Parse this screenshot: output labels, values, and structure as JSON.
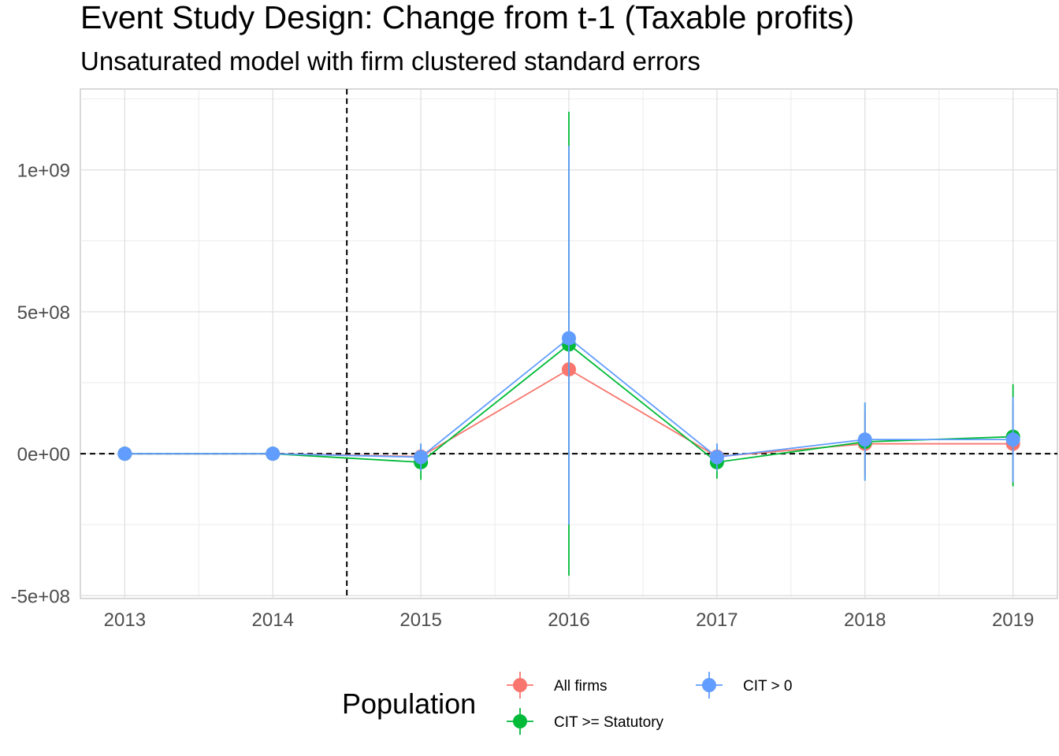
{
  "chart_data": {
    "type": "line",
    "title": "Event Study Design: Change from t-1 (Taxable profits)",
    "subtitle": "Unsaturated model with firm clustered standard errors",
    "xlabel": "",
    "ylabel": "",
    "x": [
      2013,
      2014,
      2015,
      2016,
      2017,
      2018,
      2019
    ],
    "x_tick_labels": [
      "2013",
      "2014",
      "2015",
      "2016",
      "2017",
      "2018",
      "2019"
    ],
    "xlim": [
      2012.7,
      2019.3
    ],
    "ylim": [
      -510000000,
      1285000000
    ],
    "y_ticks": [
      -500000000,
      0,
      500000000,
      1000000000
    ],
    "y_tick_labels": [
      "-5e+08",
      "0e+00",
      "5e+08",
      "1e+09"
    ],
    "reference_lines": [
      {
        "axis": "x",
        "value": 2014.5,
        "style": "dashed"
      },
      {
        "axis": "y",
        "value": 0,
        "style": "dashed"
      }
    ],
    "grid": true,
    "legend_title": "Population",
    "legend_position": "bottom",
    "series": [
      {
        "name": "All firms",
        "color": "#F8766D",
        "values": [
          0,
          0,
          -10000000,
          297000000,
          -10000000,
          35000000,
          35000000
        ],
        "lower": [
          0,
          0,
          -45000000,
          -230000000,
          -45000000,
          -80000000,
          -110000000
        ],
        "upper": [
          0,
          0,
          25000000,
          1020000000,
          25000000,
          150000000,
          180000000
        ]
      },
      {
        "name": "CIT >= Statutory",
        "color": "#00BA38",
        "values": [
          0,
          0,
          -30000000,
          385000000,
          -30000000,
          42000000,
          60000000
        ],
        "lower": [
          0,
          0,
          -92000000,
          -430000000,
          -88000000,
          -95000000,
          -115000000
        ],
        "upper": [
          0,
          0,
          35000000,
          1205000000,
          35000000,
          180000000,
          245000000
        ]
      },
      {
        "name": "CIT > 0",
        "color": "#619CFF",
        "values": [
          0,
          0,
          -12000000,
          407000000,
          -12000000,
          50000000,
          50000000
        ],
        "lower": [
          0,
          0,
          -60000000,
          -250000000,
          -60000000,
          -95000000,
          -100000000
        ],
        "upper": [
          0,
          0,
          36000000,
          1085000000,
          36000000,
          180000000,
          200000000
        ]
      }
    ]
  }
}
